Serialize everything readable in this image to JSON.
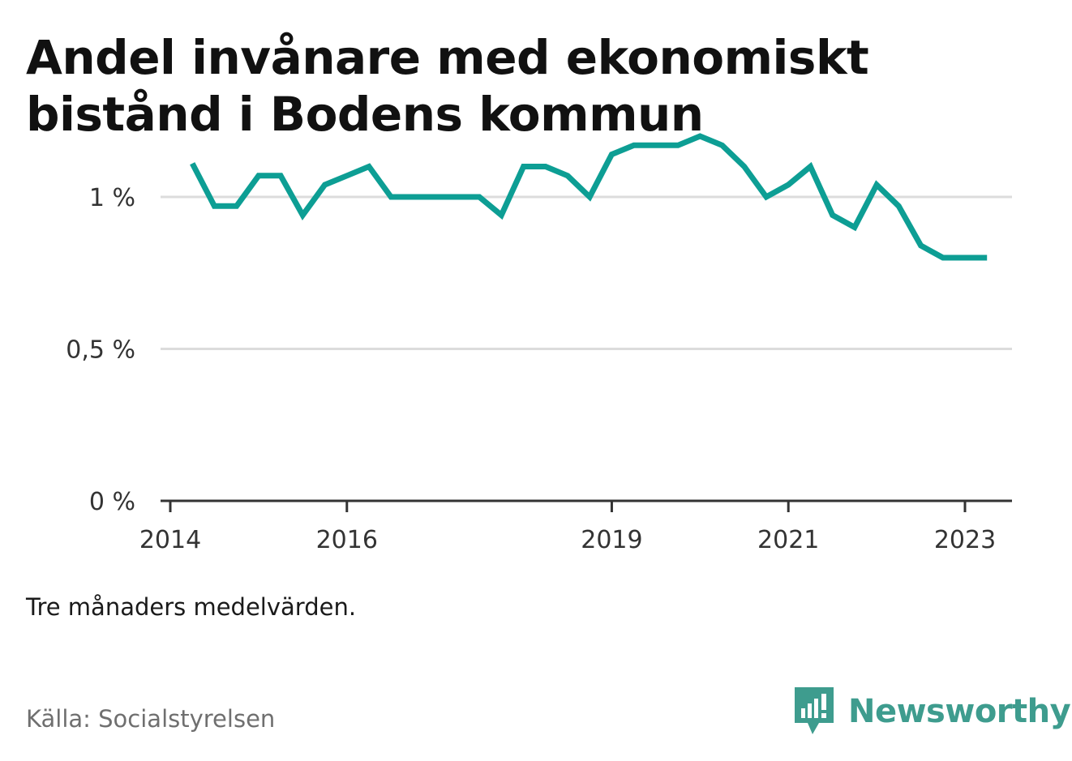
{
  "title": "Andel invånare med ekonomiskt bistånd i Bodens kommun",
  "note": "Tre månaders medelvärden.",
  "source": "Källa: Socialstyrelsen",
  "brand": {
    "name": "Newsworthy",
    "icon": "newsworthy-logo-icon",
    "color": "#3e9c8e"
  },
  "chart_data": {
    "type": "line",
    "title": "Andel invånare med ekonomiskt bistånd i Bodens kommun",
    "xlabel": "",
    "ylabel": "",
    "ylim": [
      0,
      1.2
    ],
    "xlim": [
      "2014-01",
      "2023-07"
    ],
    "y_ticks": [
      {
        "value": 0,
        "label": "0 %"
      },
      {
        "value": 0.5,
        "label": "0,5 %"
      },
      {
        "value": 1,
        "label": "1 %"
      }
    ],
    "x_ticks": [
      {
        "value": "2014-01",
        "label": "2014"
      },
      {
        "value": "2016-01",
        "label": "2016"
      },
      {
        "value": "2019-01",
        "label": "2019"
      },
      {
        "value": "2021-01",
        "label": "2021"
      },
      {
        "value": "2023-01",
        "label": "2023"
      }
    ],
    "grid": true,
    "color": "#0d9e94",
    "series": [
      {
        "x": [
          "2014-04",
          "2014-07",
          "2014-10",
          "2015-01",
          "2015-04",
          "2015-07",
          "2015-10",
          "2016-01",
          "2016-04",
          "2016-07",
          "2016-10",
          "2017-01",
          "2017-04",
          "2017-07",
          "2017-10",
          "2018-01",
          "2018-04",
          "2018-07",
          "2018-10",
          "2019-01",
          "2019-04",
          "2019-07",
          "2019-10",
          "2020-01",
          "2020-04",
          "2020-07",
          "2020-10",
          "2021-01",
          "2021-04",
          "2021-07",
          "2021-10",
          "2022-01",
          "2022-04",
          "2022-07",
          "2022-10",
          "2023-01",
          "2023-04"
        ],
        "values": [
          1.11,
          0.97,
          0.97,
          1.07,
          1.07,
          0.94,
          1.04,
          1.07,
          1.1,
          1.0,
          1.0,
          1.0,
          1.0,
          1.0,
          0.94,
          1.1,
          1.1,
          1.07,
          1.0,
          1.14,
          1.17,
          1.17,
          1.17,
          1.2,
          1.17,
          1.1,
          1.0,
          1.04,
          1.1,
          0.94,
          0.9,
          1.04,
          0.97,
          0.84,
          0.8,
          0.8,
          0.8
        ]
      }
    ]
  }
}
